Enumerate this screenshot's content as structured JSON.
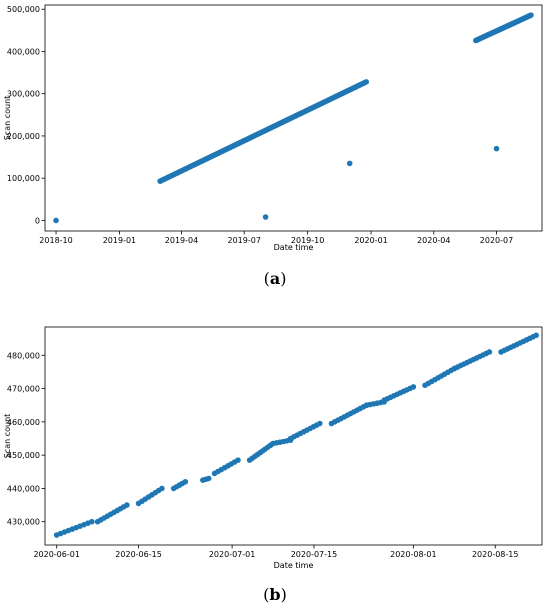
{
  "chart_data": [
    {
      "type": "scatter",
      "panel_label": "a",
      "xlabel": "Date time",
      "ylabel": "Scan count",
      "x_ticks": [
        "2018-10",
        "2019-01",
        "2019-04",
        "2019-07",
        "2019-10",
        "2020-01",
        "2020-04",
        "2020-07"
      ],
      "y_ticks": [
        "0",
        "100,000",
        "200,000",
        "300,000",
        "400,000",
        "500,000"
      ],
      "xlim": [
        "2018-09-15",
        "2020-09-05"
      ],
      "ylim": [
        -25000,
        510000
      ],
      "color": "#1f77b4",
      "series": [
        {
          "points": [
            {
              "x": "2018-10-01",
              "y": 0
            },
            {
              "x": "2019-08-01",
              "y": 8000
            },
            {
              "x": "2019-12-01",
              "y": 135000
            },
            {
              "x": "2020-07-01",
              "y": 170000
            }
          ],
          "segments": [
            {
              "x_start": "2019-03-01",
              "y_start": 93000,
              "x_end": "2019-12-25",
              "y_end": 328000,
              "count": 150
            },
            {
              "x_start": "2020-06-01",
              "y_start": 426000,
              "x_end": "2020-08-20",
              "y_end": 486000,
              "count": 55
            }
          ]
        }
      ]
    },
    {
      "type": "scatter",
      "panel_label": "b",
      "xlabel": "Date time",
      "ylabel": "Scan count",
      "x_ticks": [
        "2020-06-01",
        "2020-06-15",
        "2020-07-01",
        "2020-07-15",
        "2020-08-01",
        "2020-08-15"
      ],
      "y_ticks": [
        "430,000",
        "440,000",
        "450,000",
        "460,000",
        "470,000",
        "480,000"
      ],
      "xlim": [
        "2020-05-30",
        "2020-08-23"
      ],
      "ylim": [
        423000,
        488500
      ],
      "color": "#1f77b4",
      "series": [
        {
          "segments": [
            {
              "x_start": "2020-06-01",
              "y_start": 426000,
              "x_end": "2020-06-07",
              "y_end": 430000,
              "count": 10
            },
            {
              "x_start": "2020-06-08",
              "y_start": 430000,
              "x_end": "2020-06-13",
              "y_end": 435000,
              "count": 10
            },
            {
              "x_start": "2020-06-15",
              "y_start": 435500,
              "x_end": "2020-06-19",
              "y_end": 440000,
              "count": 8
            },
            {
              "x_start": "2020-06-21",
              "y_start": 440000,
              "x_end": "2020-06-23",
              "y_end": 442000,
              "count": 5
            },
            {
              "x_start": "2020-06-26",
              "y_start": 442500,
              "x_end": "2020-06-27",
              "y_end": 443000,
              "count": 3
            },
            {
              "x_start": "2020-06-28",
              "y_start": 444500,
              "x_end": "2020-07-02",
              "y_end": 448500,
              "count": 8
            },
            {
              "x_start": "2020-07-04",
              "y_start": 448500,
              "x_end": "2020-07-08",
              "y_end": 453500,
              "count": 10
            },
            {
              "x_start": "2020-07-08",
              "y_start": 453500,
              "x_end": "2020-07-11",
              "y_end": 454500,
              "count": 6
            },
            {
              "x_start": "2020-07-11",
              "y_start": 455000,
              "x_end": "2020-07-16",
              "y_end": 459500,
              "count": 10
            },
            {
              "x_start": "2020-07-18",
              "y_start": 459500,
              "x_end": "2020-07-24",
              "y_end": 465000,
              "count": 12
            },
            {
              "x_start": "2020-07-24",
              "y_start": 465000,
              "x_end": "2020-07-27",
              "y_end": 466000,
              "count": 6
            },
            {
              "x_start": "2020-07-27",
              "y_start": 466500,
              "x_end": "2020-08-01",
              "y_end": 470500,
              "count": 10
            },
            {
              "x_start": "2020-08-03",
              "y_start": 471000,
              "x_end": "2020-08-08",
              "y_end": 476000,
              "count": 10
            },
            {
              "x_start": "2020-08-08",
              "y_start": 476000,
              "x_end": "2020-08-14",
              "y_end": 481000,
              "count": 12
            },
            {
              "x_start": "2020-08-16",
              "y_start": 481000,
              "x_end": "2020-08-22",
              "y_end": 486000,
              "count": 12
            }
          ]
        }
      ]
    }
  ]
}
